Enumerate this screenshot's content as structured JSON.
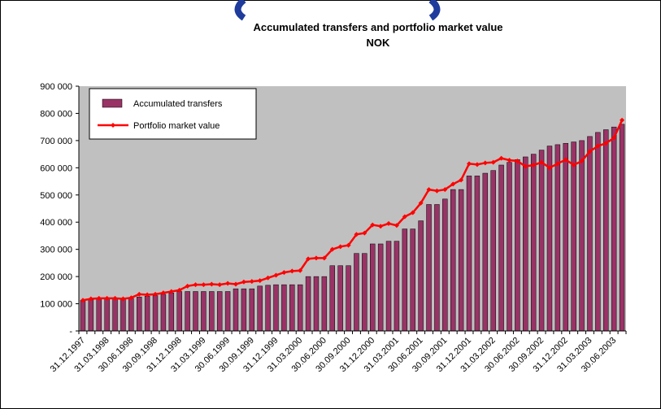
{
  "chart_data": {
    "type": "bar-line",
    "title": "Accumulated transfers and portfolio market value",
    "subtitle": "NOK",
    "categories": [
      "31.12.1997",
      null,
      null,
      "31.03.1998",
      null,
      null,
      "30.06.1998",
      null,
      null,
      "30.09.1998",
      null,
      null,
      "31.12.1998",
      null,
      null,
      "31.03.1999",
      null,
      null,
      "30.06.1999",
      null,
      null,
      "30.09.1999",
      null,
      null,
      "31.12.1999",
      null,
      null,
      "31.03.2000",
      null,
      null,
      "30.06.2000",
      null,
      null,
      "30.09.2000",
      null,
      null,
      "31.12.2000",
      null,
      null,
      "31.03.2001",
      null,
      null,
      "30.06.2001",
      null,
      null,
      "30.09.2001",
      null,
      null,
      "31.12.2001",
      null,
      null,
      "31.03.2002",
      null,
      null,
      "30.06.2002",
      null,
      null,
      "30.09.2002",
      null,
      null,
      "31.12.2002",
      null,
      null,
      "31.03.2003",
      null,
      null,
      "30.06.2003",
      null
    ],
    "series": [
      {
        "name": "Accumulated transfers",
        "kind": "bar",
        "color": "#993366",
        "values": [
          113000,
          115000,
          118000,
          118000,
          118000,
          120000,
          120000,
          125000,
          128000,
          130000,
          135000,
          140000,
          145000,
          145000,
          145000,
          145000,
          145000,
          145000,
          145000,
          155000,
          155000,
          155000,
          165000,
          168000,
          170000,
          170000,
          170000,
          170000,
          200000,
          200000,
          200000,
          240000,
          240000,
          240000,
          285000,
          285000,
          320000,
          320000,
          330000,
          330000,
          375000,
          375000,
          405000,
          465000,
          465000,
          485000,
          520000,
          520000,
          570000,
          570000,
          580000,
          590000,
          610000,
          620000,
          630000,
          640000,
          650000,
          665000,
          680000,
          685000,
          690000,
          695000,
          700000,
          715000,
          730000,
          740000,
          750000,
          760000
        ]
      },
      {
        "name": "Portfolio market value",
        "kind": "line",
        "color": "#ff0000",
        "values": [
          113000,
          118000,
          120000,
          120000,
          120000,
          118000,
          122000,
          135000,
          133000,
          135000,
          140000,
          145000,
          150000,
          165000,
          170000,
          170000,
          172000,
          170000,
          175000,
          172000,
          180000,
          182000,
          185000,
          195000,
          205000,
          215000,
          220000,
          222000,
          265000,
          268000,
          268000,
          300000,
          310000,
          315000,
          355000,
          360000,
          390000,
          385000,
          395000,
          388000,
          420000,
          435000,
          470000,
          520000,
          515000,
          520000,
          540000,
          555000,
          615000,
          612000,
          618000,
          620000,
          635000,
          628000,
          625000,
          605000,
          610000,
          620000,
          600000,
          615000,
          630000,
          610000,
          625000,
          660000,
          680000,
          690000,
          710000,
          775000
        ]
      }
    ],
    "ylim": [
      0,
      900000
    ],
    "yticks": [
      {
        "value": 0,
        "label": "-"
      },
      {
        "value": 100000,
        "label": "100 000"
      },
      {
        "value": 200000,
        "label": "200 000"
      },
      {
        "value": 300000,
        "label": "300 000"
      },
      {
        "value": 400000,
        "label": "400 000"
      },
      {
        "value": 500000,
        "label": "500 000"
      },
      {
        "value": 600000,
        "label": "600 000"
      },
      {
        "value": 700000,
        "label": "700 000"
      },
      {
        "value": 800000,
        "label": "800 000"
      },
      {
        "value": 900000,
        "label": "900 000"
      }
    ],
    "legend": "upper left"
  }
}
